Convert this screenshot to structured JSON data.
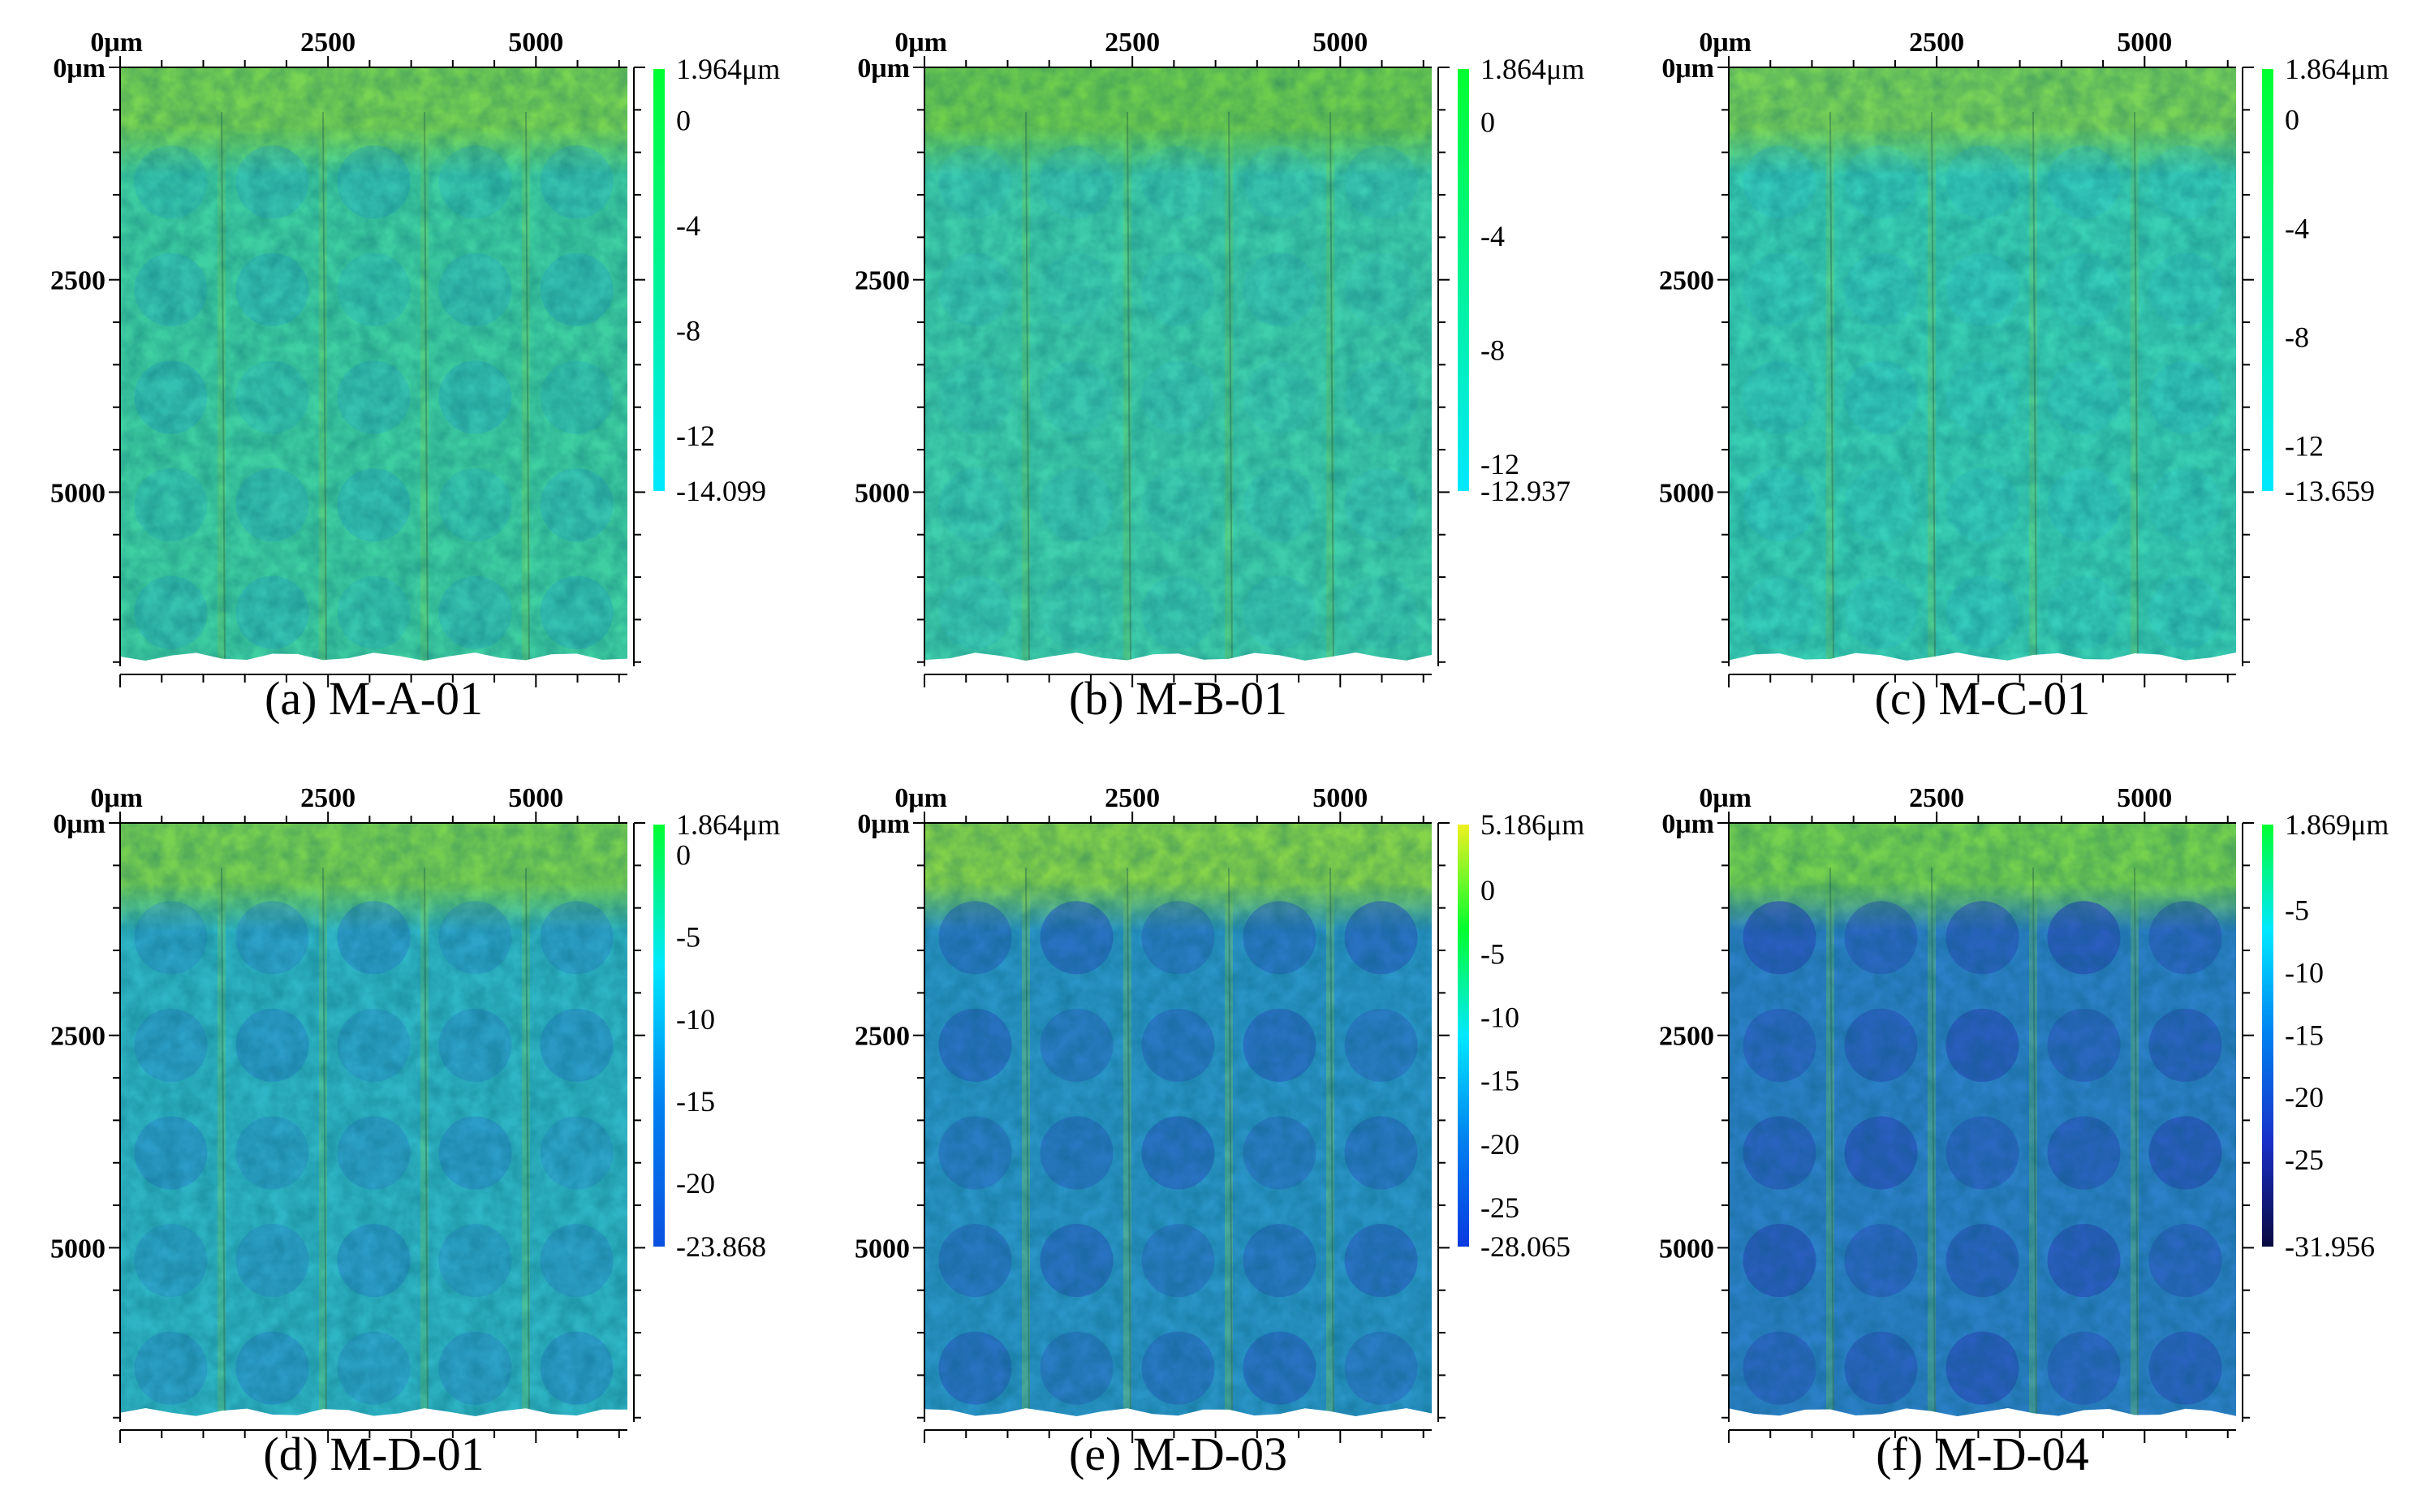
{
  "figure": {
    "x_axis_unit": "μm",
    "y_axis_unit": "μm",
    "colorbar_unit": "μm"
  },
  "chart_data": [
    {
      "type": "heatmap",
      "panel_id": "a",
      "caption": "(a) M-A-01",
      "xticks": [
        {
          "value": 0,
          "label": "0μm"
        },
        {
          "value": 2500,
          "label": "2500"
        },
        {
          "value": 5000,
          "label": "5000"
        }
      ],
      "yticks": [
        {
          "value": 0,
          "label": "0μm"
        },
        {
          "value": 2500,
          "label": "2500"
        },
        {
          "value": 5000,
          "label": "5000"
        }
      ],
      "xlim": [
        0,
        6100
      ],
      "ylim": [
        0,
        7050
      ],
      "colorbar": {
        "max": 1.964,
        "min": -14.099,
        "labels": [
          {
            "value": 1.964,
            "label": "1.964μm"
          },
          {
            "value": 0,
            "label": "0"
          },
          {
            "value": -4,
            "label": "-4"
          },
          {
            "value": -8,
            "label": "-8"
          },
          {
            "value": -12,
            "label": "-12"
          },
          {
            "value": -14.099,
            "label": "-14.099"
          }
        ],
        "colors": [
          "#00ff30",
          "#00e8ff"
        ]
      },
      "surface": {
        "base": "#3fd0a2",
        "top": "#78d452",
        "deep": "#23a7cf",
        "depth": 0.35
      }
    },
    {
      "type": "heatmap",
      "panel_id": "b",
      "caption": "(b) M-B-01",
      "xticks": [
        {
          "value": 0,
          "label": "0μm"
        },
        {
          "value": 2500,
          "label": "2500"
        },
        {
          "value": 5000,
          "label": "5000"
        }
      ],
      "yticks": [
        {
          "value": 0,
          "label": "0μm"
        },
        {
          "value": 2500,
          "label": "2500"
        },
        {
          "value": 5000,
          "label": "5000"
        }
      ],
      "xlim": [
        0,
        6100
      ],
      "ylim": [
        0,
        7050
      ],
      "colorbar": {
        "max": 1.864,
        "min": -12.937,
        "labels": [
          {
            "value": 1.864,
            "label": "1.864μm"
          },
          {
            "value": 0,
            "label": "0"
          },
          {
            "value": -4,
            "label": "-4"
          },
          {
            "value": -8,
            "label": "-8"
          },
          {
            "value": -12,
            "label": "-12"
          },
          {
            "value": -12.937,
            "label": "-12.937"
          }
        ],
        "colors": [
          "#00ff30",
          "#00e8ff"
        ]
      },
      "surface": {
        "base": "#3fcfac",
        "top": "#6fcf4d",
        "deep": "#2eb8c4",
        "depth": 0.25
      }
    },
    {
      "type": "heatmap",
      "panel_id": "c",
      "caption": "(c) M-C-01",
      "xticks": [
        {
          "value": 0,
          "label": "0μm"
        },
        {
          "value": 2500,
          "label": "2500"
        },
        {
          "value": 5000,
          "label": "5000"
        }
      ],
      "yticks": [
        {
          "value": 0,
          "label": "0μm"
        },
        {
          "value": 2500,
          "label": "2500"
        },
        {
          "value": 5000,
          "label": "5000"
        }
      ],
      "xlim": [
        0,
        6100
      ],
      "ylim": [
        0,
        7050
      ],
      "colorbar": {
        "max": 1.864,
        "min": -13.659,
        "labels": [
          {
            "value": 1.864,
            "label": "1.864μm"
          },
          {
            "value": 0,
            "label": "0"
          },
          {
            "value": -4,
            "label": "-4"
          },
          {
            "value": -8,
            "label": "-8"
          },
          {
            "value": -12,
            "label": "-12"
          },
          {
            "value": -13.659,
            "label": "-13.659"
          }
        ],
        "colors": [
          "#00ff30",
          "#00e8ff"
        ]
      },
      "surface": {
        "base": "#39d0b4",
        "top": "#7ad457",
        "deep": "#2ec0d2",
        "depth": 0.3
      }
    },
    {
      "type": "heatmap",
      "panel_id": "d",
      "caption": "(d) M-D-01",
      "xticks": [
        {
          "value": 0,
          "label": "0μm"
        },
        {
          "value": 2500,
          "label": "2500"
        },
        {
          "value": 5000,
          "label": "5000"
        }
      ],
      "yticks": [
        {
          "value": 0,
          "label": "0μm"
        },
        {
          "value": 2500,
          "label": "2500"
        },
        {
          "value": 5000,
          "label": "5000"
        }
      ],
      "xlim": [
        0,
        6100
      ],
      "ylim": [
        0,
        7050
      ],
      "colorbar": {
        "max": 1.864,
        "min": -23.868,
        "labels": [
          {
            "value": 1.864,
            "label": "1.864μm"
          },
          {
            "value": 0,
            "label": "0"
          },
          {
            "value": -5,
            "label": "-5"
          },
          {
            "value": -10,
            "label": "-10"
          },
          {
            "value": -15,
            "label": "-15"
          },
          {
            "value": -20,
            "label": "-20"
          },
          {
            "value": -23.868,
            "label": "-23.868"
          }
        ],
        "colors": [
          "#00ff30",
          "#00e8ff",
          "#0080f0",
          "#0a50e0"
        ]
      },
      "surface": {
        "base": "#2fb6c6",
        "top": "#79d250",
        "deep": "#2a7fcc",
        "depth": 0.45
      }
    },
    {
      "type": "heatmap",
      "panel_id": "e",
      "caption": "(e) M-D-03",
      "xticks": [
        {
          "value": 0,
          "label": "0μm"
        },
        {
          "value": 2500,
          "label": "2500"
        },
        {
          "value": 5000,
          "label": "5000"
        }
      ],
      "yticks": [
        {
          "value": 0,
          "label": "0μm"
        },
        {
          "value": 2500,
          "label": "2500"
        },
        {
          "value": 5000,
          "label": "5000"
        }
      ],
      "xlim": [
        0,
        6100
      ],
      "ylim": [
        0,
        7050
      ],
      "colorbar": {
        "max": 5.186,
        "min": -28.065,
        "labels": [
          {
            "value": 5.186,
            "label": "5.186μm"
          },
          {
            "value": 0,
            "label": "0"
          },
          {
            "value": -5,
            "label": "-5"
          },
          {
            "value": -10,
            "label": "-10"
          },
          {
            "value": -15,
            "label": "-15"
          },
          {
            "value": -20,
            "label": "-20"
          },
          {
            "value": -25,
            "label": "-25"
          },
          {
            "value": -28.065,
            "label": "-28.065"
          }
        ],
        "colors": [
          "#f0f020",
          "#00ff30",
          "#00e8ff",
          "#0080f0",
          "#0a3ae0"
        ]
      },
      "surface": {
        "base": "#2a95c8",
        "top": "#86d44a",
        "deep": "#2a5cbf",
        "depth": 0.6
      }
    },
    {
      "type": "heatmap",
      "panel_id": "f",
      "caption": "(f) M-D-04",
      "xticks": [
        {
          "value": 0,
          "label": "0μm"
        },
        {
          "value": 2500,
          "label": "2500"
        },
        {
          "value": 5000,
          "label": "5000"
        }
      ],
      "yticks": [
        {
          "value": 0,
          "label": "0μm"
        },
        {
          "value": 2500,
          "label": "2500"
        },
        {
          "value": 5000,
          "label": "5000"
        }
      ],
      "xlim": [
        0,
        6100
      ],
      "ylim": [
        0,
        7050
      ],
      "colorbar": {
        "max": 1.869,
        "min": -31.956,
        "labels": [
          {
            "value": 1.869,
            "label": "1.869μm"
          },
          {
            "value": -5,
            "label": "-5"
          },
          {
            "value": -10,
            "label": "-10"
          },
          {
            "value": -15,
            "label": "-15"
          },
          {
            "value": -20,
            "label": "-20"
          },
          {
            "value": -25,
            "label": "-25"
          },
          {
            "value": -31.956,
            "label": "-31.956"
          }
        ],
        "colors": [
          "#00ff30",
          "#00e8ff",
          "#0080f0",
          "#1a30c8",
          "#0a0a40"
        ]
      },
      "surface": {
        "base": "#2c80c8",
        "top": "#76d24e",
        "deep": "#2a4ab8",
        "depth": 0.65
      }
    }
  ]
}
